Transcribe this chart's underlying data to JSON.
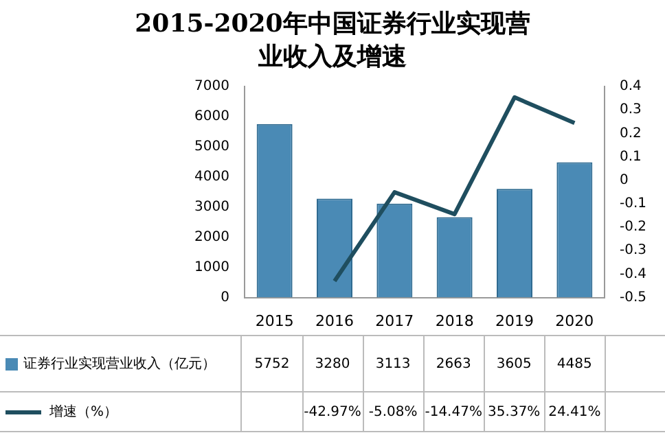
{
  "chart_data": {
    "type": "bar",
    "title": "2015-2020年中国证券行业实现营业收入及增速",
    "categories": [
      "2015",
      "2016",
      "2017",
      "2018",
      "2019",
      "2020"
    ],
    "series": [
      {
        "name": "证券行业实现营业收入（亿元）",
        "color": "#4a8ab5",
        "values": [
          5752,
          3280,
          3113,
          2663,
          3605,
          4485
        ],
        "value_labels": [
          "5752",
          "3280",
          "3113",
          "2663",
          "3605",
          "4485"
        ]
      },
      {
        "name": "增速（%）",
        "type": "line",
        "axis": "y2",
        "color": "#1f4e5f",
        "values": [
          null,
          -0.4297,
          -0.0508,
          -0.1447,
          0.3537,
          0.2441
        ],
        "value_labels": [
          null,
          "-42.97%",
          "-5.08%",
          "-14.47%",
          "35.37%",
          "24.41%"
        ]
      }
    ],
    "ylim": [
      0,
      7000
    ],
    "yticks": [
      0,
      1000,
      2000,
      3000,
      4000,
      5000,
      6000,
      7000
    ],
    "y2lim": [
      -0.5,
      0.4
    ],
    "y2ticks": [
      {
        "value": 0.4,
        "label": "0.4"
      },
      {
        "value": 0.3,
        "label": "0.3"
      },
      {
        "value": 0.2,
        "label": "0.2"
      },
      {
        "value": 0.1,
        "label": "0.1"
      },
      {
        "value": 0,
        "label": "0"
      },
      {
        "value": -0.1,
        "label": "-0.1"
      },
      {
        "value": -0.2,
        "label": "-0.2"
      },
      {
        "value": -0.3,
        "label": "-0.3"
      },
      {
        "value": -0.4,
        "label": "-0.4"
      },
      {
        "value": -0.5,
        "label": "-0.5"
      }
    ],
    "grid": false,
    "legend": "bottom",
    "marker": "none"
  }
}
